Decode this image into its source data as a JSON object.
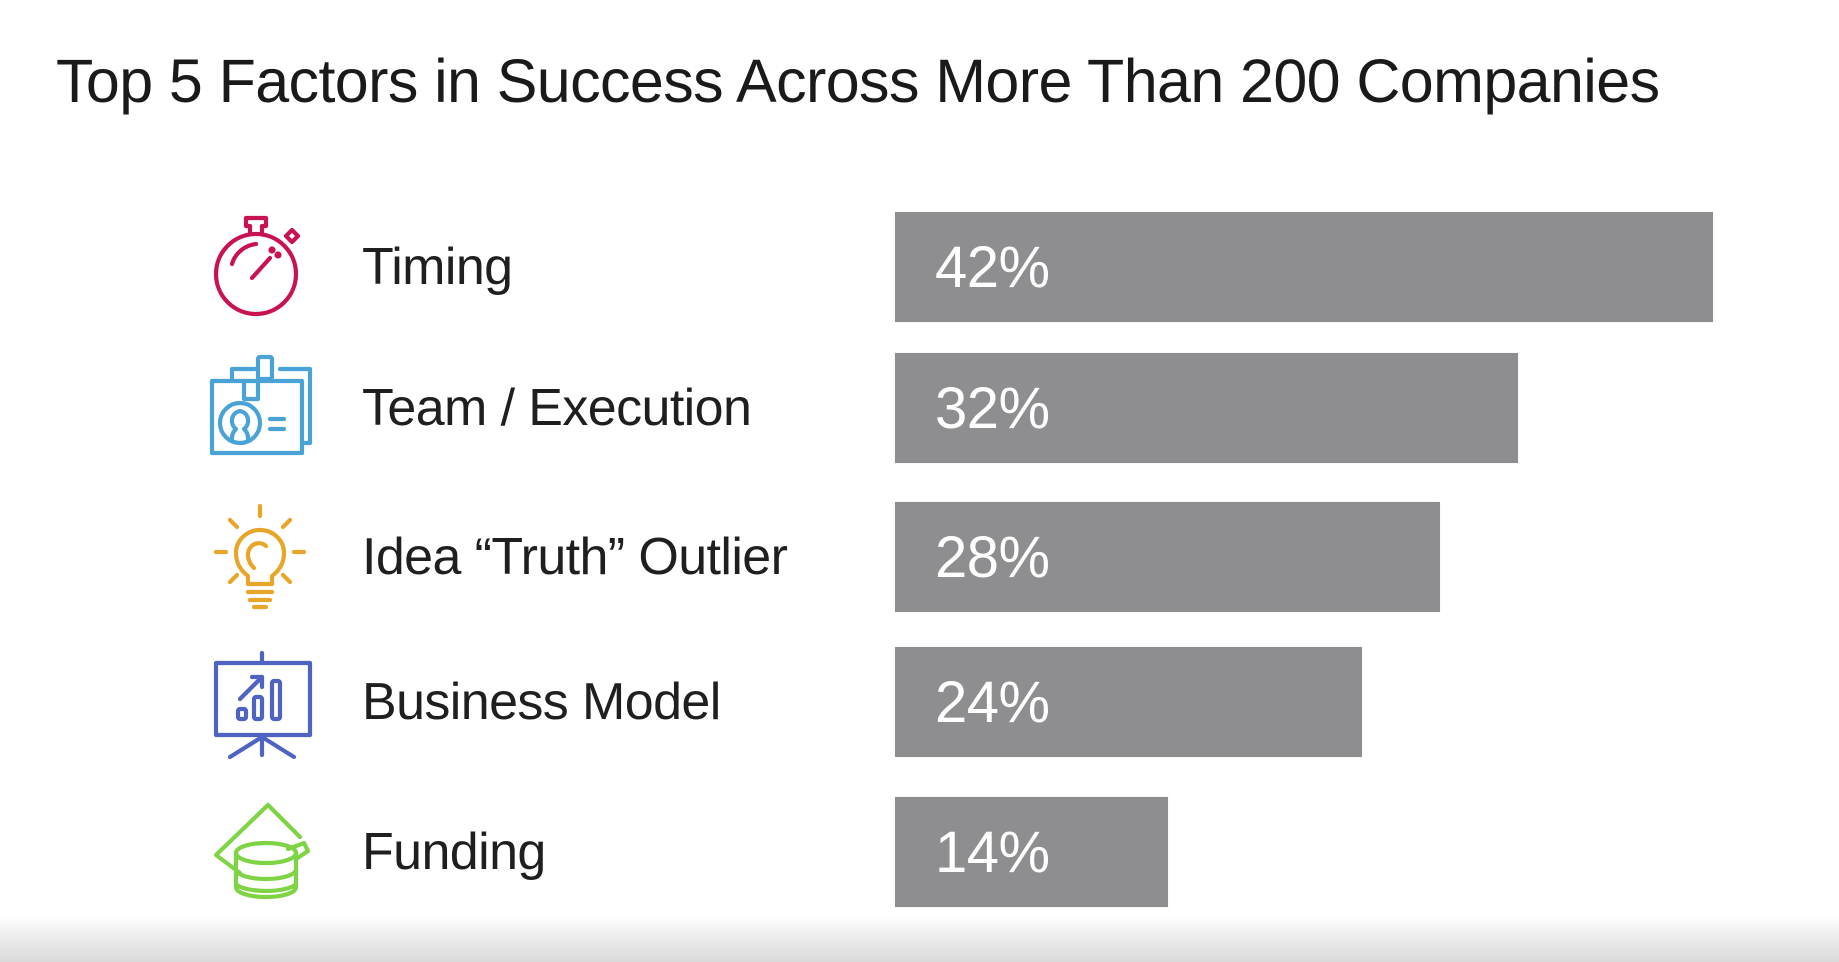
{
  "chart_data": {
    "type": "bar",
    "orientation": "horizontal",
    "title": "Top 5 Factors in Success Across More Than 200 Companies",
    "categories": [
      "Timing",
      "Team / Execution",
      "Idea “Truth” Outlier",
      "Business Model",
      "Funding"
    ],
    "values": [
      42,
      32,
      28,
      24,
      14
    ],
    "value_labels": [
      "42%",
      "32%",
      "28%",
      "24%",
      "14%"
    ],
    "unit": "%",
    "xlabel": "",
    "ylabel": "",
    "xlim": [
      0,
      42
    ],
    "grid": false,
    "legend": "none",
    "bar_color": "#8e8d8f",
    "value_label_color": "#ffffff",
    "icons": [
      {
        "name": "stopwatch-icon",
        "color": "#c8134f"
      },
      {
        "name": "id-badge-icon",
        "color": "#4aa3d6"
      },
      {
        "name": "lightbulb-icon",
        "color": "#e7a62a"
      },
      {
        "name": "presentation-chart-icon",
        "color": "#4e63c2"
      },
      {
        "name": "money-coins-icon",
        "color": "#7ed444"
      }
    ]
  }
}
